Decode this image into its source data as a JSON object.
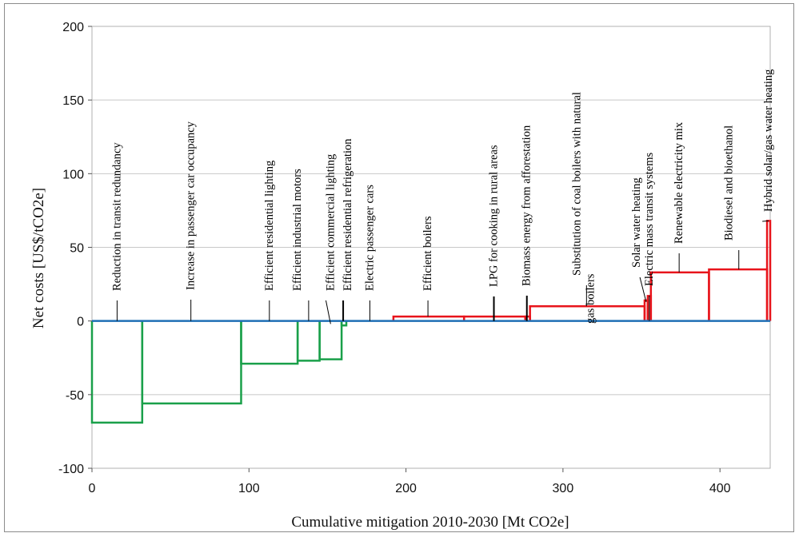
{
  "chart_data": {
    "type": "step",
    "title": "",
    "xlabel": "Cumulative mitigation 2010-2030 [Mt CO2e]",
    "ylabel": "Net costs [US$/tCO2e]",
    "xlim": [
      0,
      432
    ],
    "ylim": [
      -100,
      200
    ],
    "xticks": [
      0,
      100,
      200,
      300,
      400
    ],
    "yticks": [
      -100,
      -50,
      0,
      50,
      100,
      150,
      200
    ],
    "grid": "horizontal",
    "colors": {
      "negative": "#1aa04a",
      "positive": "#e8141b",
      "baseline": "#1f6fb5",
      "grid": "#c8c8c8",
      "leader": "#000000"
    },
    "measures": [
      {
        "name": "Reduction in transit redundancy",
        "x0": 0,
        "x1": 32,
        "cost": -69,
        "label_x": 16
      },
      {
        "name": "Increase in passenger car occupancy",
        "x0": 32,
        "x1": 95,
        "cost": -56,
        "label_x": 63
      },
      {
        "name": "Efficient residential lighting",
        "x0": 95,
        "x1": 131,
        "cost": -29,
        "label_x": 113
      },
      {
        "name": "Efficient industrial motors",
        "x0": 131,
        "x1": 145,
        "cost": -27,
        "label_x": 138
      },
      {
        "name": "Efficient commercial lighting",
        "x0": 145,
        "x1": 159,
        "cost": -26,
        "label_x": 152
      },
      {
        "name": "Efficient residential refrigeration",
        "x0": 159,
        "x1": 162,
        "cost": -3,
        "label_x": 160
      },
      {
        "name": "Electric passenger cars",
        "x0": 162,
        "x1": 192,
        "cost": 0,
        "label_x": 177
      },
      {
        "name": "Efficient boilers",
        "x0": 192,
        "x1": 237,
        "cost": 3,
        "label_x": 214
      },
      {
        "name": "LPG for cooking in rural areas",
        "x0": 237,
        "x1": 276,
        "cost": 3,
        "label_x": 256
      },
      {
        "name": "Biomass energy from afforestation",
        "x0": 276,
        "x1": 279,
        "cost": 3,
        "label_x": 277
      },
      {
        "name": "Substitution of coal boilers with natural gas boilers",
        "x0": 279,
        "x1": 352,
        "cost": 10,
        "label_x": 315
      },
      {
        "name": "Solar water heating",
        "x0": 352,
        "x1": 354,
        "cost": 14,
        "label_x": 353
      },
      {
        "name": "Electric mass transit systems",
        "x0": 354,
        "x1": 356,
        "cost": 17,
        "label_x": 355
      },
      {
        "name": "Renewable electricity mix",
        "x0": 356,
        "x1": 393,
        "cost": 33,
        "label_x": 374
      },
      {
        "name": "Biodiesel and bioethanol",
        "x0": 393,
        "x1": 430,
        "cost": 35,
        "label_x": 412
      },
      {
        "name": "Hybrid solar/gas water heating",
        "x0": 430,
        "x1": 432,
        "cost": 68,
        "label_x": 431
      }
    ]
  }
}
